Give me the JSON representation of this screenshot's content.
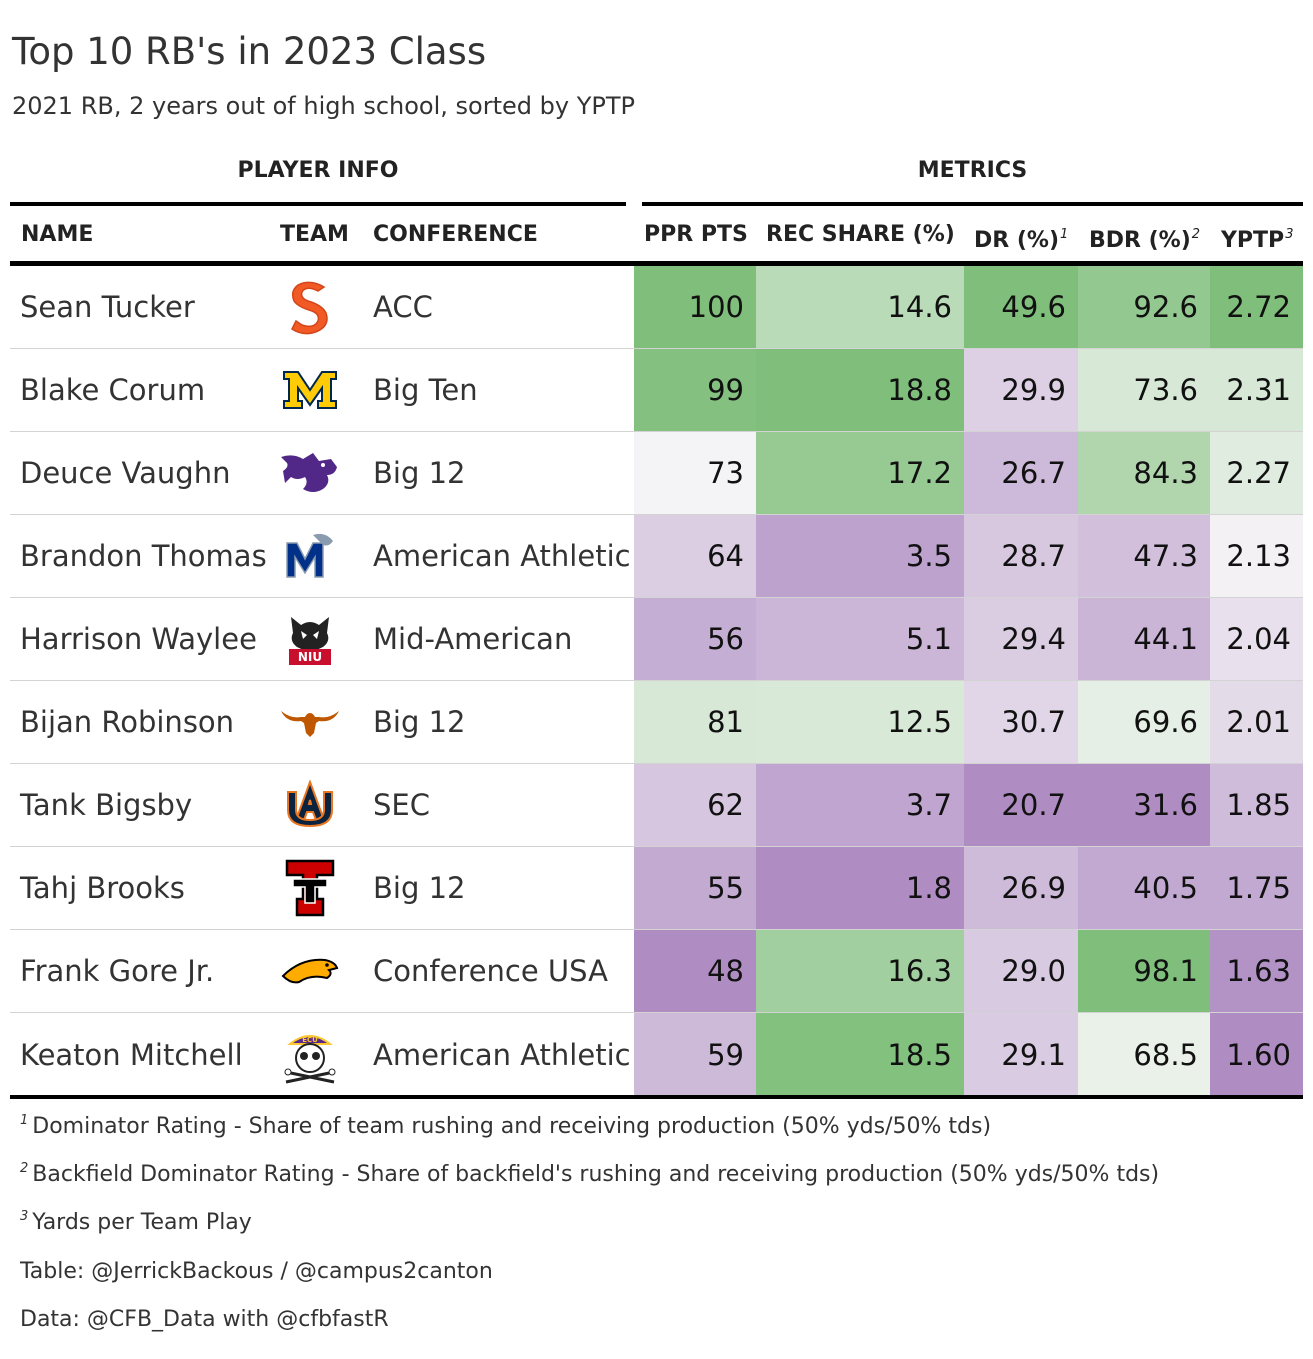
{
  "title": "Top 10 RB's in 2023 Class",
  "subtitle": "2021 RB, 2 years out of high school, sorted by YPTP",
  "spanners": {
    "info": "PLAYER INFO",
    "metrics": "METRICS"
  },
  "columns": {
    "name": "NAME",
    "team": "TEAM",
    "conference": "CONFERENCE",
    "ppr": "PPR PTS",
    "rec_share": "REC SHARE (%)",
    "dr": "DR (%)",
    "bdr": "BDR (%)",
    "yptp": "YPTP",
    "dr_mark": "1",
    "bdr_mark": "2",
    "yptp_mark": "3"
  },
  "colors": {
    "low": "#af8dc3",
    "mid": "#f7f7f7",
    "high": "#7fbf7b"
  },
  "chart_data": {
    "type": "table",
    "title": "Top 10 RB's in 2023 Class",
    "subtitle": "2021 RB, 2 years out of high school, sorted by YPTP",
    "columns": [
      "NAME",
      "TEAM",
      "CONFERENCE",
      "PPR PTS",
      "REC SHARE (%)",
      "DR (%)",
      "BDR (%)",
      "YPTP"
    ],
    "rows": [
      {
        "name": "Sean Tucker",
        "team_logo": "syracuse-logo",
        "conference": "ACC",
        "ppr": "100",
        "rec_share": "14.6",
        "dr": "49.6",
        "bdr": "92.6",
        "yptp": "2.72"
      },
      {
        "name": "Blake Corum",
        "team_logo": "michigan-logo",
        "conference": "Big Ten",
        "ppr": "99",
        "rec_share": "18.8",
        "dr": "29.9",
        "bdr": "73.6",
        "yptp": "2.31"
      },
      {
        "name": "Deuce Vaughn",
        "team_logo": "kansas-state-logo",
        "conference": "Big 12",
        "ppr": "73",
        "rec_share": "17.2",
        "dr": "26.7",
        "bdr": "84.3",
        "yptp": "2.27"
      },
      {
        "name": "Brandon Thomas",
        "team_logo": "memphis-logo",
        "conference": "American Athletic",
        "ppr": "64",
        "rec_share": "3.5",
        "dr": "28.7",
        "bdr": "47.3",
        "yptp": "2.13"
      },
      {
        "name": "Harrison Waylee",
        "team_logo": "northern-illinois-logo",
        "conference": "Mid-American",
        "ppr": "56",
        "rec_share": "5.1",
        "dr": "29.4",
        "bdr": "44.1",
        "yptp": "2.04"
      },
      {
        "name": "Bijan Robinson",
        "team_logo": "texas-logo",
        "conference": "Big 12",
        "ppr": "81",
        "rec_share": "12.5",
        "dr": "30.7",
        "bdr": "69.6",
        "yptp": "2.01"
      },
      {
        "name": "Tank Bigsby",
        "team_logo": "auburn-logo",
        "conference": "SEC",
        "ppr": "62",
        "rec_share": "3.7",
        "dr": "20.7",
        "bdr": "31.6",
        "yptp": "1.85"
      },
      {
        "name": "Tahj Brooks",
        "team_logo": "texas-tech-logo",
        "conference": "Big 12",
        "ppr": "55",
        "rec_share": "1.8",
        "dr": "26.9",
        "bdr": "40.5",
        "yptp": "1.75"
      },
      {
        "name": "Frank Gore Jr.",
        "team_logo": "southern-miss-logo",
        "conference": "Conference USA",
        "ppr": "48",
        "rec_share": "16.3",
        "dr": "29.0",
        "bdr": "98.1",
        "yptp": "1.63"
      },
      {
        "name": "Keaton Mitchell",
        "team_logo": "ecu-logo",
        "conference": "American Athletic",
        "ppr": "59",
        "rec_share": "18.5",
        "dr": "29.1",
        "bdr": "68.5",
        "yptp": "1.60"
      }
    ]
  },
  "footnotes": [
    {
      "mark": "1",
      "text": "Dominator Rating - Share of team rushing and receiving production (50% yds/50% tds)"
    },
    {
      "mark": "2",
      "text": "Backfield Dominator Rating - Share of backfield's rushing and receiving production (50% yds/50% tds)"
    },
    {
      "mark": "3",
      "text": "Yards per Team Play"
    }
  ],
  "source_notes": {
    "table": "Table: @JerrickBackous / @campus2canton",
    "data": "Data: @CFB_Data with @cfbfastR"
  }
}
